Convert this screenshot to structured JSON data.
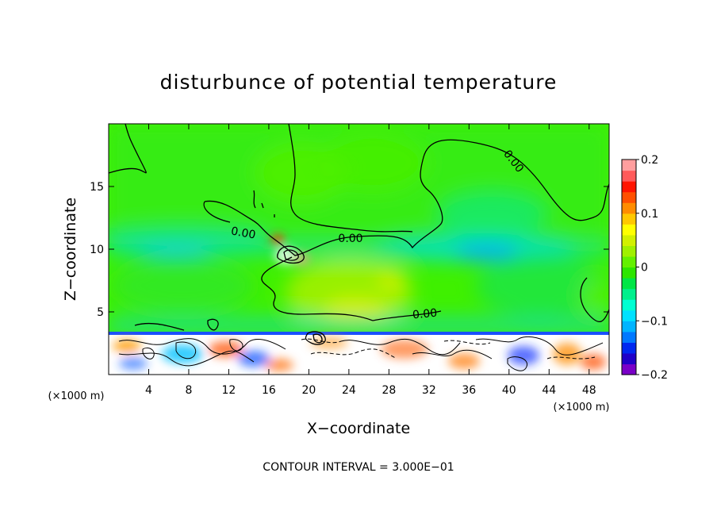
{
  "chart_data": {
    "type": "heatmap",
    "title": "disturbunce of potential temperature",
    "xlabel": "X−coordinate",
    "ylabel": "Z−coordinate",
    "x_unit": "(×1000 m)",
    "y_unit": "(×1000 m)",
    "xlim": [
      0,
      50
    ],
    "ylim": [
      0,
      20
    ],
    "x_ticks": [
      4,
      8,
      12,
      16,
      20,
      24,
      28,
      32,
      36,
      40,
      44,
      48
    ],
    "y_ticks": [
      5,
      10,
      15
    ],
    "colorbar": {
      "range": [
        -0.2,
        0.2
      ],
      "tick_values": [
        -0.2,
        -0.1,
        0,
        0.1,
        0.2
      ],
      "tick_labels": [
        "−0.2",
        "−0.1",
        "0",
        "0.1",
        "0.2"
      ],
      "colors": [
        "#7a00c8",
        "#2000c8",
        "#0028f0",
        "#0078ff",
        "#00b4ff",
        "#00e1ff",
        "#00ffd2",
        "#00f08c",
        "#00e646",
        "#2de600",
        "#64f000",
        "#a0f000",
        "#d2f000",
        "#ffff00",
        "#ffc800",
        "#ff8c00",
        "#ff5000",
        "#ff1400",
        "#ff5a5a",
        "#ff9e9e"
      ]
    },
    "contour_labels": [
      {
        "text": "0.00",
        "x": 16.5,
        "z": 11.3
      },
      {
        "text": "0.00",
        "x": 24.5,
        "z": 10.9
      },
      {
        "text": "0.00",
        "x": 31.5,
        "z": 4.8
      },
      {
        "text": "0.00",
        "x": 40.5,
        "z": 17.3
      }
    ],
    "contour_interval_note": "CONTOUR INTERVAL = 3.000E−01"
  }
}
